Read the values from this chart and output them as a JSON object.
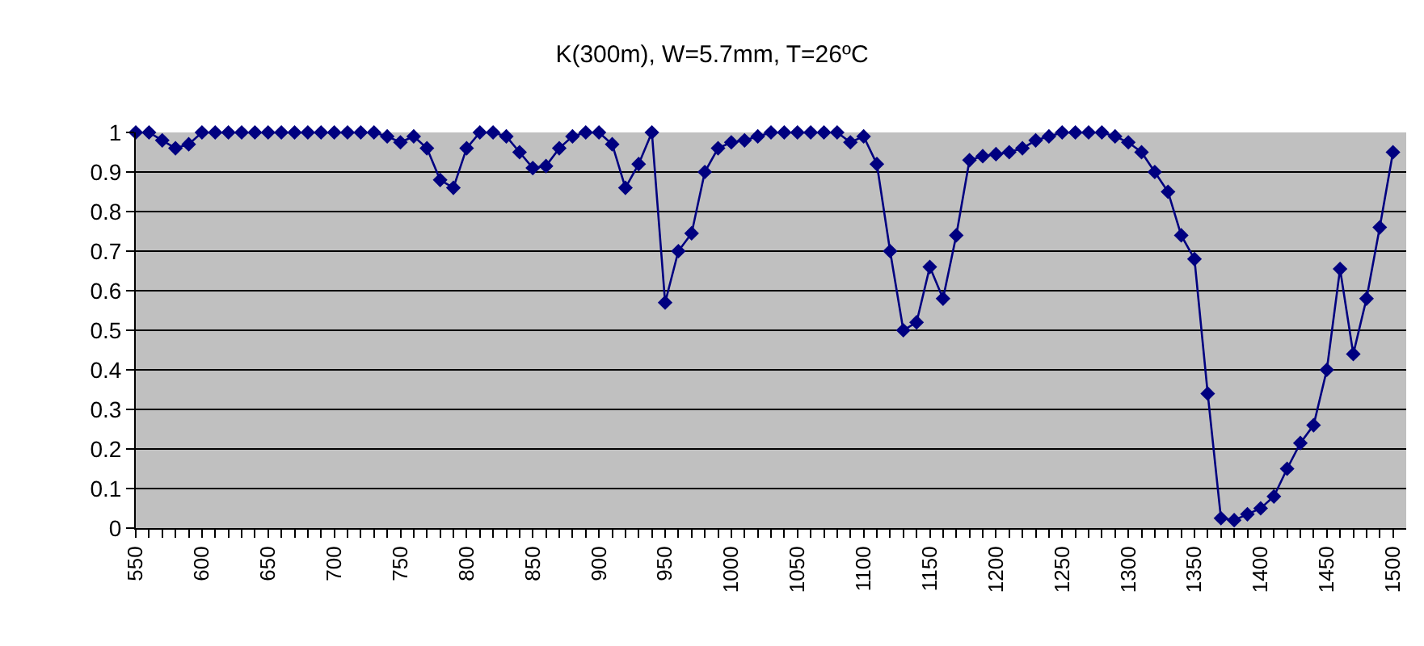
{
  "chart_data": {
    "type": "line",
    "title": "K(300m), W=5.7mm, T=26ºC",
    "x": [
      550,
      560,
      570,
      580,
      590,
      600,
      610,
      620,
      630,
      640,
      650,
      660,
      670,
      680,
      690,
      700,
      710,
      720,
      730,
      740,
      750,
      760,
      770,
      780,
      790,
      800,
      810,
      820,
      830,
      840,
      850,
      860,
      870,
      880,
      890,
      900,
      910,
      920,
      930,
      940,
      950,
      960,
      970,
      980,
      990,
      1000,
      1010,
      1020,
      1030,
      1040,
      1050,
      1060,
      1070,
      1080,
      1090,
      1100,
      1110,
      1120,
      1130,
      1140,
      1150,
      1160,
      1170,
      1180,
      1190,
      1200,
      1210,
      1220,
      1230,
      1240,
      1250,
      1260,
      1270,
      1280,
      1290,
      1300,
      1310,
      1320,
      1330,
      1340,
      1350,
      1360,
      1370,
      1380,
      1390,
      1400,
      1410,
      1420,
      1430,
      1440,
      1450,
      1460,
      1470,
      1480,
      1490,
      1500
    ],
    "series": [
      {
        "color": "#000080",
        "values": [
          1,
          1,
          0.98,
          0.96,
          0.97,
          1,
          1,
          1,
          1,
          1,
          1,
          1,
          1,
          1,
          1,
          1,
          1,
          1,
          1,
          0.99,
          0.975,
          0.99,
          0.96,
          0.88,
          0.86,
          0.96,
          1,
          1,
          0.99,
          0.95,
          0.91,
          0.915,
          0.96,
          0.99,
          1,
          1,
          0.97,
          0.86,
          0.92,
          1,
          0.57,
          0.7,
          0.745,
          0.9,
          0.96,
          0.975,
          0.98,
          0.99,
          1,
          1,
          1,
          1,
          1,
          1,
          0.975,
          0.99,
          0.92,
          0.7,
          0.5,
          0.52,
          0.66,
          0.58,
          0.74,
          0.93,
          0.94,
          0.945,
          0.95,
          0.96,
          0.98,
          0.99,
          1,
          1,
          1,
          1,
          0.99,
          0.975,
          0.95,
          0.9,
          0.85,
          0.74,
          0.68,
          0.34,
          0.025,
          0.02,
          0.035,
          0.05,
          0.08,
          0.15,
          0.215,
          0.26,
          0.4,
          0.655,
          0.44,
          0.58,
          0.76,
          0.95
        ]
      }
    ],
    "xlim": [
      550,
      1510
    ],
    "xticks": [
      550,
      {
        "value": 560,
        "label": null
      },
      {
        "value": 570,
        "label": null
      },
      {
        "value": 580,
        "label": null
      },
      {
        "value": 590,
        "label": null
      },
      600,
      {
        "value": 610,
        "label": null
      },
      {
        "value": 620,
        "label": null
      },
      {
        "value": 630,
        "label": null
      },
      {
        "value": 640,
        "label": null
      },
      650,
      {
        "value": 660,
        "label": null
      },
      {
        "value": 670,
        "label": null
      },
      {
        "value": 680,
        "label": null
      },
      {
        "value": 690,
        "label": null
      },
      700,
      {
        "value": 710,
        "label": null
      },
      {
        "value": 720,
        "label": null
      },
      {
        "value": 730,
        "label": null
      },
      {
        "value": 740,
        "label": null
      },
      750,
      {
        "value": 760,
        "label": null
      },
      {
        "value": 770,
        "label": null
      },
      {
        "value": 780,
        "label": null
      },
      {
        "value": 790,
        "label": null
      },
      800,
      {
        "value": 810,
        "label": null
      },
      {
        "value": 820,
        "label": null
      },
      {
        "value": 830,
        "label": null
      },
      {
        "value": 840,
        "label": null
      },
      850,
      {
        "value": 860,
        "label": null
      },
      {
        "value": 870,
        "label": null
      },
      {
        "value": 880,
        "label": null
      },
      {
        "value": 890,
        "label": null
      },
      900,
      {
        "value": 910,
        "label": null
      },
      {
        "value": 920,
        "label": null
      },
      {
        "value": 930,
        "label": null
      },
      {
        "value": 940,
        "label": null
      },
      950,
      {
        "value": 960,
        "label": null
      },
      {
        "value": 970,
        "label": null
      },
      {
        "value": 980,
        "label": null
      },
      {
        "value": 990,
        "label": null
      },
      1000,
      {
        "value": 1010,
        "label": null
      },
      {
        "value": 1020,
        "label": null
      },
      {
        "value": 1030,
        "label": null
      },
      {
        "value": 1040,
        "label": null
      },
      1050,
      {
        "value": 1060,
        "label": null
      },
      {
        "value": 1070,
        "label": null
      },
      {
        "value": 1080,
        "label": null
      },
      {
        "value": 1090,
        "label": null
      },
      1100,
      {
        "value": 1110,
        "label": null
      },
      {
        "value": 1120,
        "label": null
      },
      {
        "value": 1130,
        "label": null
      },
      {
        "value": 1140,
        "label": null
      },
      1150,
      {
        "value": 1160,
        "label": null
      },
      {
        "value": 1170,
        "label": null
      },
      {
        "value": 1180,
        "label": null
      },
      {
        "value": 1190,
        "label": null
      },
      1200,
      {
        "value": 1210,
        "label": null
      },
      {
        "value": 1220,
        "label": null
      },
      {
        "value": 1230,
        "label": null
      },
      {
        "value": 1240,
        "label": null
      },
      1250,
      {
        "value": 1260,
        "label": null
      },
      {
        "value": 1270,
        "label": null
      },
      {
        "value": 1280,
        "label": null
      },
      {
        "value": 1290,
        "label": null
      },
      1300,
      {
        "value": 1310,
        "label": null
      },
      {
        "value": 1320,
        "label": null
      },
      {
        "value": 1330,
        "label": null
      },
      {
        "value": 1340,
        "label": null
      },
      1350,
      {
        "value": 1360,
        "label": null
      },
      {
        "value": 1370,
        "label": null
      },
      {
        "value": 1380,
        "label": null
      },
      {
        "value": 1390,
        "label": null
      },
      1400,
      {
        "value": 1410,
        "label": null
      },
      {
        "value": 1420,
        "label": null
      },
      {
        "value": 1430,
        "label": null
      },
      {
        "value": 1440,
        "label": null
      },
      1450,
      {
        "value": 1460,
        "label": null
      },
      {
        "value": 1470,
        "label": null
      },
      {
        "value": 1480,
        "label": null
      },
      {
        "value": 1490,
        "label": null
      },
      1500
    ],
    "ylim": [
      0,
      1
    ],
    "yticks": [
      0,
      0.1,
      0.2,
      0.3,
      0.4,
      0.5,
      0.6,
      0.7,
      0.8,
      0.9,
      1
    ],
    "grid": "y",
    "marker": "diamond",
    "line_style": "solid"
  }
}
